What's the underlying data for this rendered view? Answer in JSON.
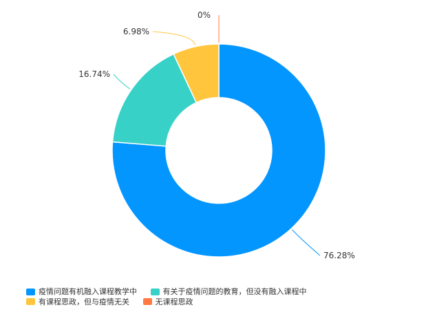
{
  "chart_data": {
    "type": "pie",
    "donut": true,
    "legend_position": "bottom-left",
    "series": [
      {
        "name": "疫情问题有机融入课程教学中",
        "value": 76.28,
        "label": "76.28%",
        "color": "#0496FF"
      },
      {
        "name": "有关于疫情问题的教育，但没有融入课程中",
        "value": 16.74,
        "label": "16.74%",
        "color": "#37D1C8"
      },
      {
        "name": "有课程思政，但与疫情无关",
        "value": 6.98,
        "label": "6.98%",
        "color": "#FFC53D"
      },
      {
        "name": "无课程思政",
        "value": 0,
        "label": "0%",
        "color": "#FF7A45"
      }
    ]
  }
}
